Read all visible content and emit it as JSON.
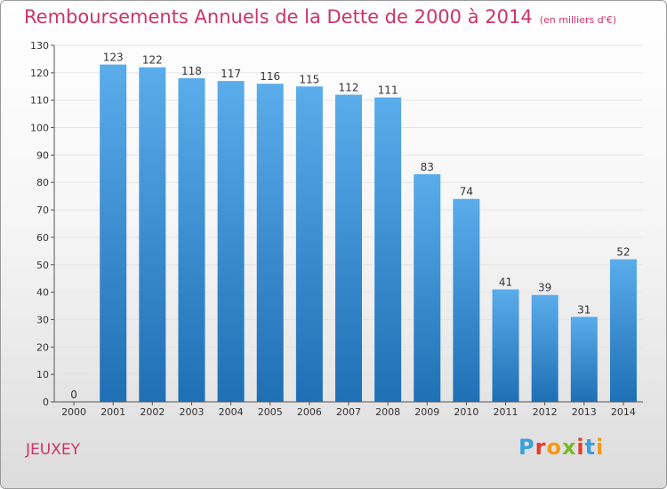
{
  "title": "Remboursements Annuels de la Dette de 2000 à 2014",
  "unit": "(en milliers d'€)",
  "commune": "JEUXEY",
  "logo": {
    "text": "Proxiti",
    "colors": [
      "#3aa0d8",
      "#e8382c",
      "#f29a18",
      "#7ab92a",
      "#e8382c",
      "#3aa0d8",
      "#f29a18"
    ]
  },
  "colors": {
    "title": "#cc3366",
    "bar_light": "#5aacea",
    "bar_dark": "#1f6fb5",
    "grid": "#e4e4e4"
  },
  "chart_data": {
    "type": "bar",
    "title": "Remboursements Annuels de la Dette de 2000 à 2014",
    "xlabel": "",
    "ylabel": "",
    "categories": [
      "2000",
      "2001",
      "2002",
      "2003",
      "2004",
      "2005",
      "2006",
      "2007",
      "2008",
      "2009",
      "2010",
      "2011",
      "2012",
      "2013",
      "2014"
    ],
    "values": [
      0,
      123,
      122,
      118,
      117,
      116,
      115,
      112,
      111,
      83,
      74,
      41,
      39,
      31,
      52
    ],
    "ylim": [
      0,
      130
    ],
    "yticks": [
      0,
      10,
      20,
      30,
      40,
      50,
      60,
      70,
      80,
      90,
      100,
      110,
      120,
      130
    ],
    "grid": true,
    "legend": "none"
  }
}
